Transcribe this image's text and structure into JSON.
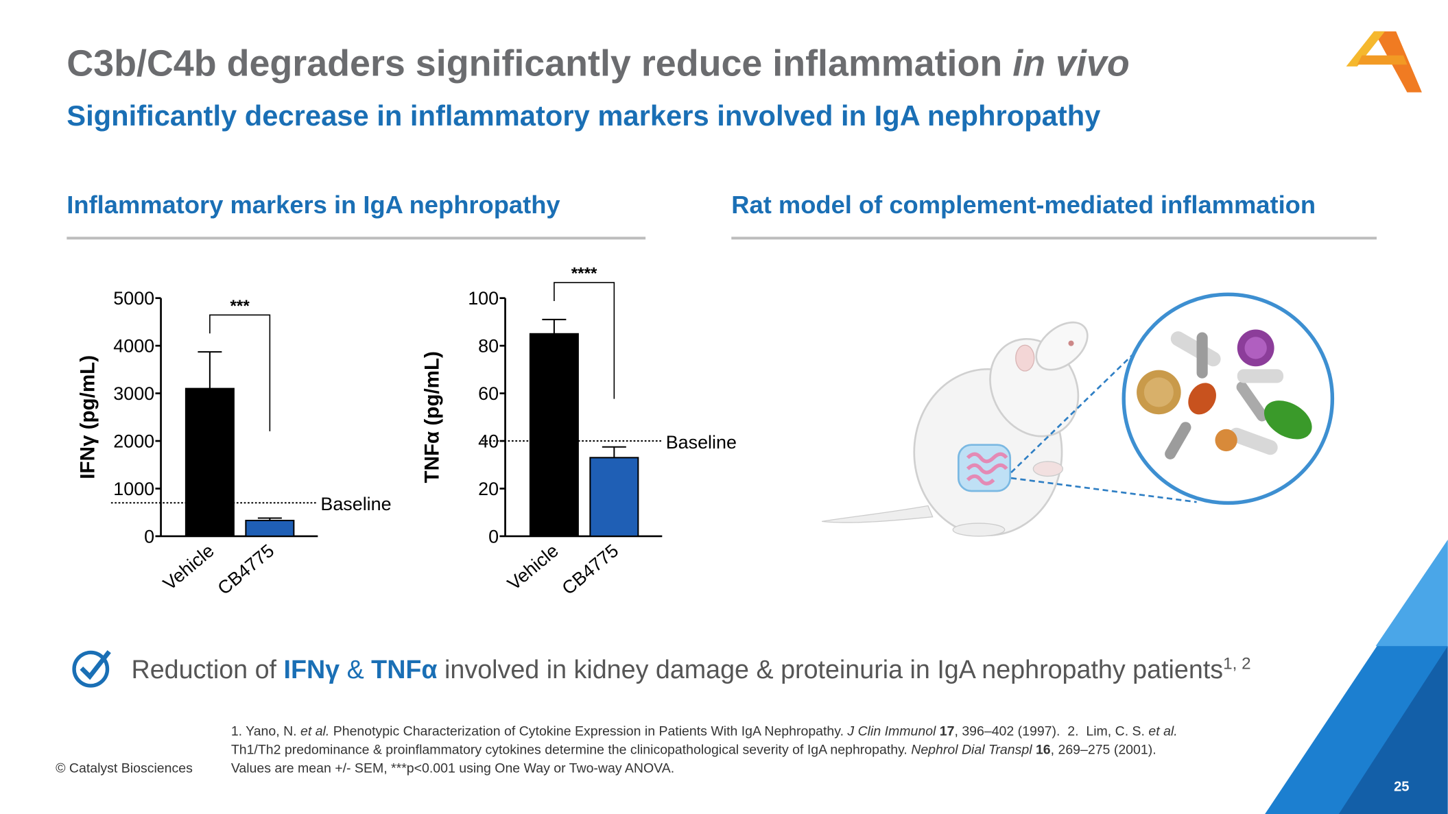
{
  "title": "C3b/C4b degraders significantly reduce inflammation ",
  "title_italic": "in vivo",
  "subtitle": "Significantly decrease in inflammatory markers involved in IgA nephropathy",
  "left_heading": "Inflammatory markers in IgA nephropathy",
  "right_heading": "Rat model of complement-mediated inflammation",
  "statement": [
    "Reduction of ",
    "IFNγ",
    " & ",
    "TNFα",
    " involved in kidney damage & proteinuria in IgA nephropathy patients",
    "1, 2"
  ],
  "footnotes": [
    [
      "1. Yano, N. ",
      "et al.",
      " Phenotypic Characterization of Cytokine Expression in Patients With IgA Nephropathy. ",
      "J Clin Immunol",
      " 17",
      ", 396–402 (1997).  2.  Lim, C. S. ",
      "et al."
    ],
    [
      "Th1/Th2 predominance & proinflammatory cytokines determine the clinicopathological severity of IgA nephropathy. ",
      "Nephrol Dial Transpl",
      " 16",
      ", 269–275 (2001)."
    ],
    [
      "Values are mean +/- SEM, ***p<0.001 using One Way or Two-way ANOVA."
    ]
  ],
  "copyright": "© Catalyst Biosciences",
  "page_number": "25",
  "chart_data": [
    {
      "type": "bar",
      "y_label": "IFNγ (pg/mL)",
      "categories": [
        "Vehicle",
        "CB4775"
      ],
      "values": [
        3100,
        330
      ],
      "errors": [
        770,
        50
      ],
      "colors": [
        "#000000",
        "#1f5fb5"
      ],
      "ylim": [
        0,
        5000
      ],
      "yticks": [
        0,
        1000,
        2000,
        3000,
        4000,
        5000
      ],
      "baseline": 700,
      "baseline_label": "Baseline",
      "significance": "***"
    },
    {
      "type": "bar",
      "y_label": "TNFα (pg/mL)",
      "categories": [
        "Vehicle",
        "CB4775"
      ],
      "values": [
        85,
        33
      ],
      "errors": [
        6,
        4.5
      ],
      "colors": [
        "#000000",
        "#1f5fb5"
      ],
      "ylim": [
        0,
        100
      ],
      "yticks": [
        0,
        20,
        40,
        60,
        80,
        100
      ],
      "baseline": 40,
      "baseline_label": "Baseline",
      "significance": "****"
    }
  ]
}
